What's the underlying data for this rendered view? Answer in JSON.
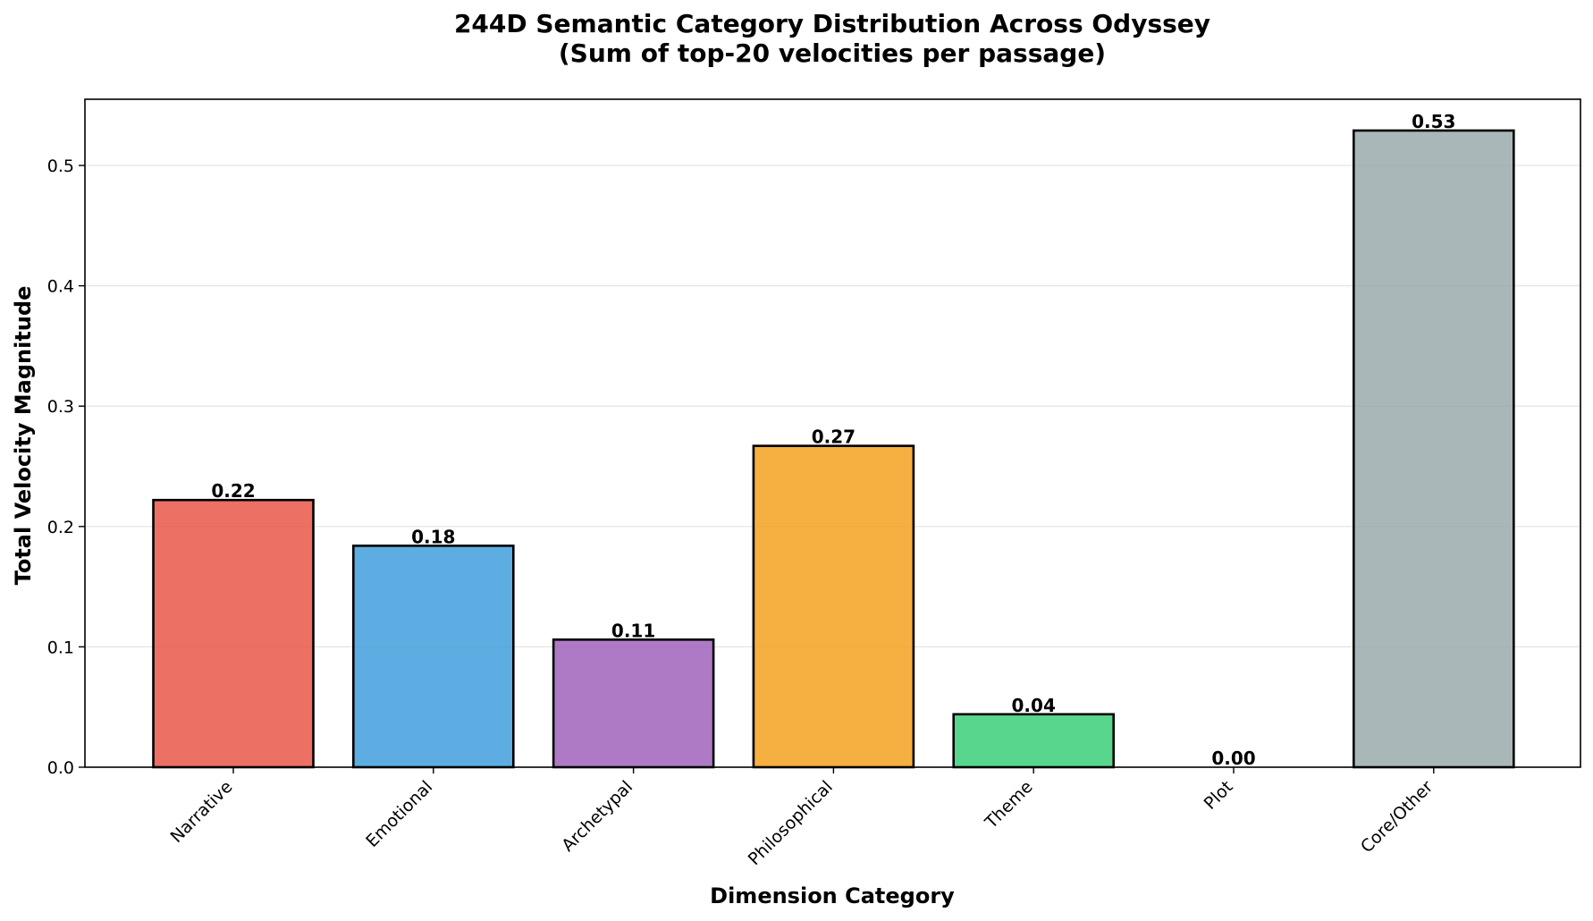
{
  "chart_data": {
    "type": "bar",
    "title_line1": "244D Semantic Category Distribution Across Odyssey",
    "title_line2": "(Sum of top-20 velocities per passage)",
    "xlabel": "Dimension Category",
    "ylabel": "Total Velocity Magnitude",
    "categories": [
      "Narrative",
      "Emotional",
      "Archetypal",
      "Philosophical",
      "Theme",
      "Plot",
      "Core/Other"
    ],
    "values": [
      0.222,
      0.184,
      0.106,
      0.267,
      0.044,
      0.0,
      0.529
    ],
    "value_labels": [
      "0.22",
      "0.18",
      "0.11",
      "0.27",
      "0.04",
      "0.00",
      "0.53"
    ],
    "colors": [
      "#e74c3c",
      "#3498db",
      "#9b59b6",
      "#f39c12",
      "#2ecc71",
      "#e67e22",
      "#95a5a6"
    ],
    "ylim": [
      0,
      0.555
    ],
    "yticks": [
      0.0,
      0.1,
      0.2,
      0.3,
      0.4,
      0.5
    ],
    "ytick_labels": [
      "0.0",
      "0.1",
      "0.2",
      "0.3",
      "0.4",
      "0.5"
    ],
    "grid": "y"
  }
}
